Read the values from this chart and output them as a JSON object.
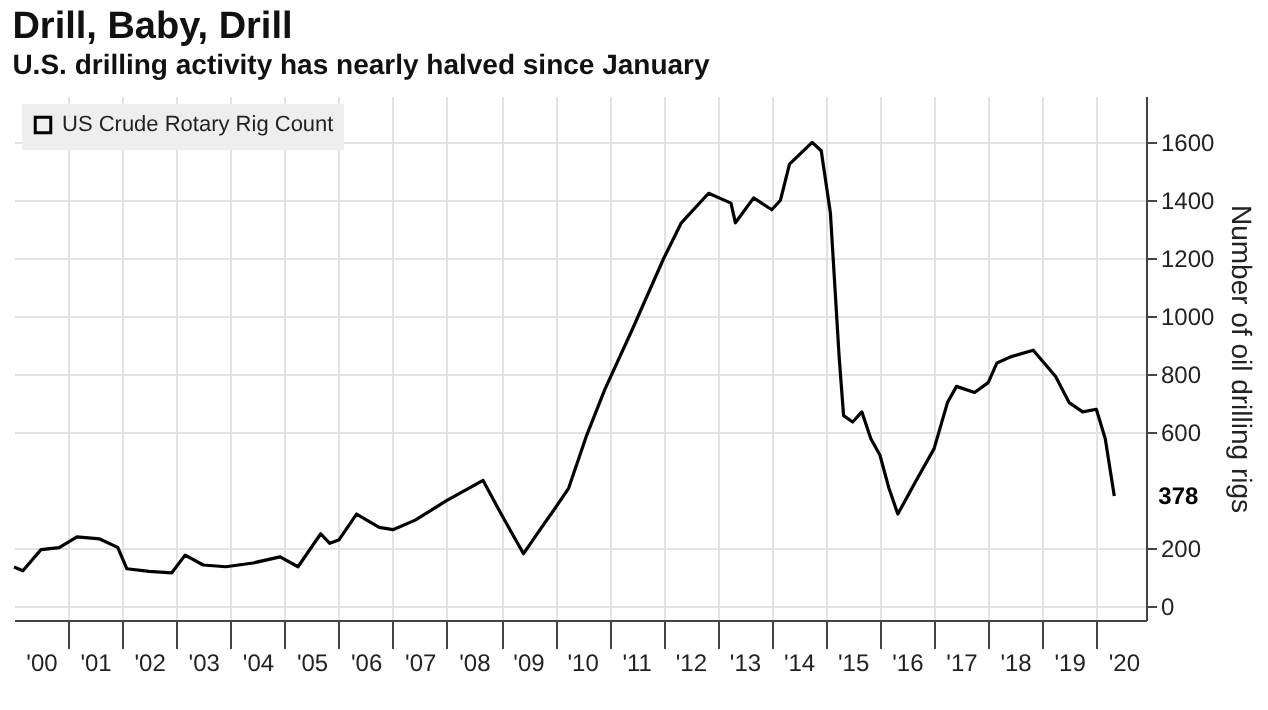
{
  "chart_data": {
    "type": "line",
    "title": "Drill, Baby, Drill",
    "subtitle": "U.S. drilling activity has nearly halved since January",
    "ylabel": "Number of oil drilling rigs",
    "x": [
      "2000-01",
      "2000-03",
      "2000-07",
      "2000-11",
      "2001-03",
      "2001-08",
      "2001-12",
      "2002-02",
      "2002-07",
      "2002-12",
      "2003-03",
      "2003-07",
      "2003-12",
      "2004-06",
      "2004-12",
      "2005-04",
      "2005-09",
      "2005-11",
      "2006-01",
      "2006-05",
      "2006-10",
      "2007-01",
      "2007-06",
      "2008-01",
      "2008-09",
      "2009-01",
      "2009-06",
      "2009-10",
      "2010-01",
      "2010-04",
      "2010-08",
      "2010-12",
      "2011-06",
      "2012-01",
      "2012-05",
      "2012-11",
      "2013-04",
      "2013-05",
      "2013-09",
      "2014-01",
      "2014-03",
      "2014-05",
      "2014-10",
      "2014-12",
      "2015-02",
      "2015-04",
      "2015-05",
      "2015-07",
      "2015-09",
      "2015-11",
      "2016-01",
      "2016-03",
      "2016-05",
      "2016-09",
      "2017-01",
      "2017-04",
      "2017-06",
      "2017-10",
      "2018-01",
      "2018-03",
      "2018-06",
      "2018-11",
      "2019-04",
      "2019-07",
      "2019-10",
      "2020-01",
      "2020-03",
      "2020-05"
    ],
    "series": [
      {
        "name": "US Crude Rotary Rig Count",
        "color": "#000000",
        "values": [
          133,
          120,
          193,
          200,
          237,
          230,
          201,
          127,
          118,
          113,
          174,
          140,
          134,
          147,
          168,
          134,
          248,
          215,
          226,
          316,
          270,
          262,
          295,
          363,
          432,
          316,
          179,
          270,
          337,
          405,
          588,
          746,
          949,
          1197,
          1322,
          1424,
          1390,
          1322,
          1408,
          1367,
          1400,
          1525,
          1600,
          1571,
          1356,
          859,
          656,
          634,
          669,
          576,
          520,
          407,
          316,
          431,
          542,
          701,
          757,
          736,
          770,
          838,
          859,
          882,
          791,
          701,
          669,
          678,
          576,
          378
        ]
      }
    ],
    "xlim": [
      "2000-01",
      "2020-12"
    ],
    "xticks": [
      {
        "value": "2000-07",
        "label": "'00"
      },
      {
        "value": "2001-07",
        "label": "'01"
      },
      {
        "value": "2002-07",
        "label": "'02"
      },
      {
        "value": "2003-07",
        "label": "'03"
      },
      {
        "value": "2004-07",
        "label": "'04"
      },
      {
        "value": "2005-07",
        "label": "'05"
      },
      {
        "value": "2006-07",
        "label": "'06"
      },
      {
        "value": "2007-07",
        "label": "'07"
      },
      {
        "value": "2008-07",
        "label": "'08"
      },
      {
        "value": "2009-07",
        "label": "'09"
      },
      {
        "value": "2010-07",
        "label": "'10"
      },
      {
        "value": "2011-07",
        "label": "'11"
      },
      {
        "value": "2012-07",
        "label": "'12"
      },
      {
        "value": "2013-07",
        "label": "'13"
      },
      {
        "value": "2014-07",
        "label": "'14"
      },
      {
        "value": "2015-07",
        "label": "'15"
      },
      {
        "value": "2016-07",
        "label": "'16"
      },
      {
        "value": "2017-07",
        "label": "'17"
      },
      {
        "value": "2018-07",
        "label": "'18"
      },
      {
        "value": "2019-07",
        "label": "'19"
      },
      {
        "value": "2020-07",
        "label": "'20"
      },
      {
        "value": "2001-01",
        "label": null
      },
      {
        "value": "2002-01",
        "label": null
      },
      {
        "value": "2003-01",
        "label": null
      },
      {
        "value": "2004-01",
        "label": null
      },
      {
        "value": "2005-01",
        "label": null
      },
      {
        "value": "2006-01",
        "label": null
      },
      {
        "value": "2007-01",
        "label": null
      },
      {
        "value": "2008-01",
        "label": null
      },
      {
        "value": "2009-01",
        "label": null
      },
      {
        "value": "2010-01",
        "label": null
      },
      {
        "value": "2011-01",
        "label": null
      },
      {
        "value": "2012-01",
        "label": null
      },
      {
        "value": "2013-01",
        "label": null
      },
      {
        "value": "2014-01",
        "label": null
      },
      {
        "value": "2015-01",
        "label": null
      },
      {
        "value": "2016-01",
        "label": null
      },
      {
        "value": "2017-01",
        "label": null
      },
      {
        "value": "2018-01",
        "label": null
      },
      {
        "value": "2019-01",
        "label": null
      },
      {
        "value": "2020-01",
        "label": null
      }
    ],
    "ylim": [
      -50,
      1760
    ],
    "yticks": [
      0,
      200,
      600,
      800,
      1000,
      1200,
      1400,
      1600
    ],
    "annotations": [
      {
        "text": "378",
        "x": "2020-05",
        "y": 378
      }
    ],
    "grid": true,
    "legend": "top left",
    "line_style": "solid"
  }
}
